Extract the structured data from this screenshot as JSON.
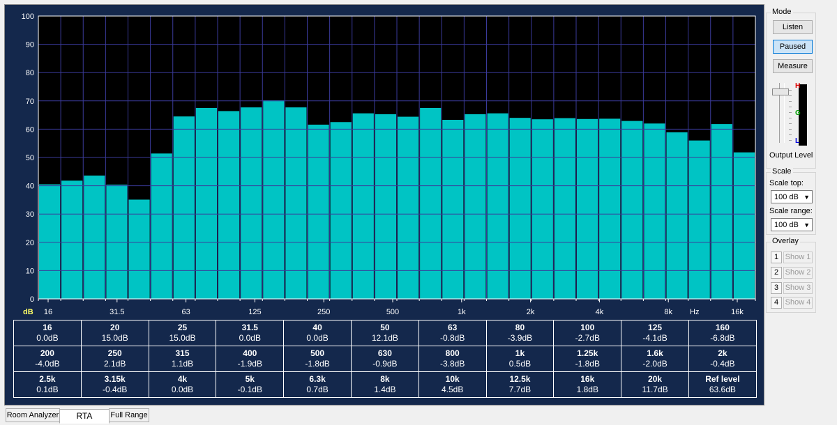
{
  "chart_data": {
    "type": "bar",
    "ylim": [
      0,
      100
    ],
    "yticks": [
      0,
      10,
      20,
      30,
      40,
      50,
      60,
      70,
      80,
      90,
      100
    ],
    "y_unit_label": "dB",
    "x_unit_label": "Hz",
    "x_tick_labels": [
      "16",
      "31.5",
      "63",
      "125",
      "250",
      "500",
      "1k",
      "2k",
      "4k",
      "8k",
      "16k"
    ],
    "values": [
      40.5,
      41.8,
      43.6,
      40.4,
      35.1,
      51.4,
      64.5,
      67.5,
      66.4,
      67.7,
      70.2,
      67.7,
      61.6,
      62.5,
      65.6,
      65.3,
      64.4,
      67.5,
      63.3,
      65.3,
      65.6,
      64.0,
      63.5,
      63.9,
      63.6,
      63.7,
      62.9,
      62.0,
      58.9,
      56.0,
      61.8,
      51.8
    ],
    "bar_color": "#00c4c4",
    "background": "#000000",
    "grid": true
  },
  "band_table": [
    [
      {
        "name": "16",
        "value": "0.0dB"
      },
      {
        "name": "20",
        "value": "15.0dB"
      },
      {
        "name": "25",
        "value": "15.0dB"
      },
      {
        "name": "31.5",
        "value": "0.0dB"
      },
      {
        "name": "40",
        "value": "0.0dB"
      },
      {
        "name": "50",
        "value": "12.1dB"
      },
      {
        "name": "63",
        "value": "-0.8dB"
      },
      {
        "name": "80",
        "value": "-3.9dB"
      },
      {
        "name": "100",
        "value": "-2.7dB"
      },
      {
        "name": "125",
        "value": "-4.1dB"
      },
      {
        "name": "160",
        "value": "-6.8dB"
      }
    ],
    [
      {
        "name": "200",
        "value": "-4.0dB"
      },
      {
        "name": "250",
        "value": "2.1dB"
      },
      {
        "name": "315",
        "value": "1.1dB"
      },
      {
        "name": "400",
        "value": "-1.9dB"
      },
      {
        "name": "500",
        "value": "-1.8dB"
      },
      {
        "name": "630",
        "value": "-0.9dB"
      },
      {
        "name": "800",
        "value": "-3.8dB"
      },
      {
        "name": "1k",
        "value": "0.5dB"
      },
      {
        "name": "1.25k",
        "value": "-1.8dB"
      },
      {
        "name": "1.6k",
        "value": "-2.0dB"
      },
      {
        "name": "2k",
        "value": "-0.4dB"
      }
    ],
    [
      {
        "name": "2.5k",
        "value": "0.1dB"
      },
      {
        "name": "3.15k",
        "value": "-0.4dB"
      },
      {
        "name": "4k",
        "value": "0.0dB"
      },
      {
        "name": "5k",
        "value": "-0.1dB"
      },
      {
        "name": "6.3k",
        "value": "0.7dB"
      },
      {
        "name": "8k",
        "value": "1.4dB"
      },
      {
        "name": "10k",
        "value": "4.5dB"
      },
      {
        "name": "12.5k",
        "value": "7.7dB"
      },
      {
        "name": "16k",
        "value": "1.8dB"
      },
      {
        "name": "20k",
        "value": "11.7dB"
      },
      {
        "name": "Ref level",
        "value": "63.6dB"
      }
    ]
  ],
  "panel": {
    "mode_title": "Mode",
    "listen_label": "Listen",
    "paused_label": "Paused",
    "measure_label": "Measure",
    "output_level_label": "Output Level",
    "meter_high": "H",
    "meter_mid": "G",
    "meter_low": "L",
    "scale_title": "Scale",
    "scale_top_label": "Scale top:",
    "scale_top_value": "100 dB",
    "scale_range_label": "Scale range:",
    "scale_range_value": "100 dB",
    "overlay_title": "Overlay",
    "overlays": [
      {
        "num": "1",
        "label": "Show 1"
      },
      {
        "num": "2",
        "label": "Show 2"
      },
      {
        "num": "3",
        "label": "Show 3"
      },
      {
        "num": "4",
        "label": "Show 4"
      }
    ]
  },
  "tabs": {
    "room_analyzer": "Room Analyzer",
    "rta": "RTA",
    "full_range": "Full Range"
  }
}
